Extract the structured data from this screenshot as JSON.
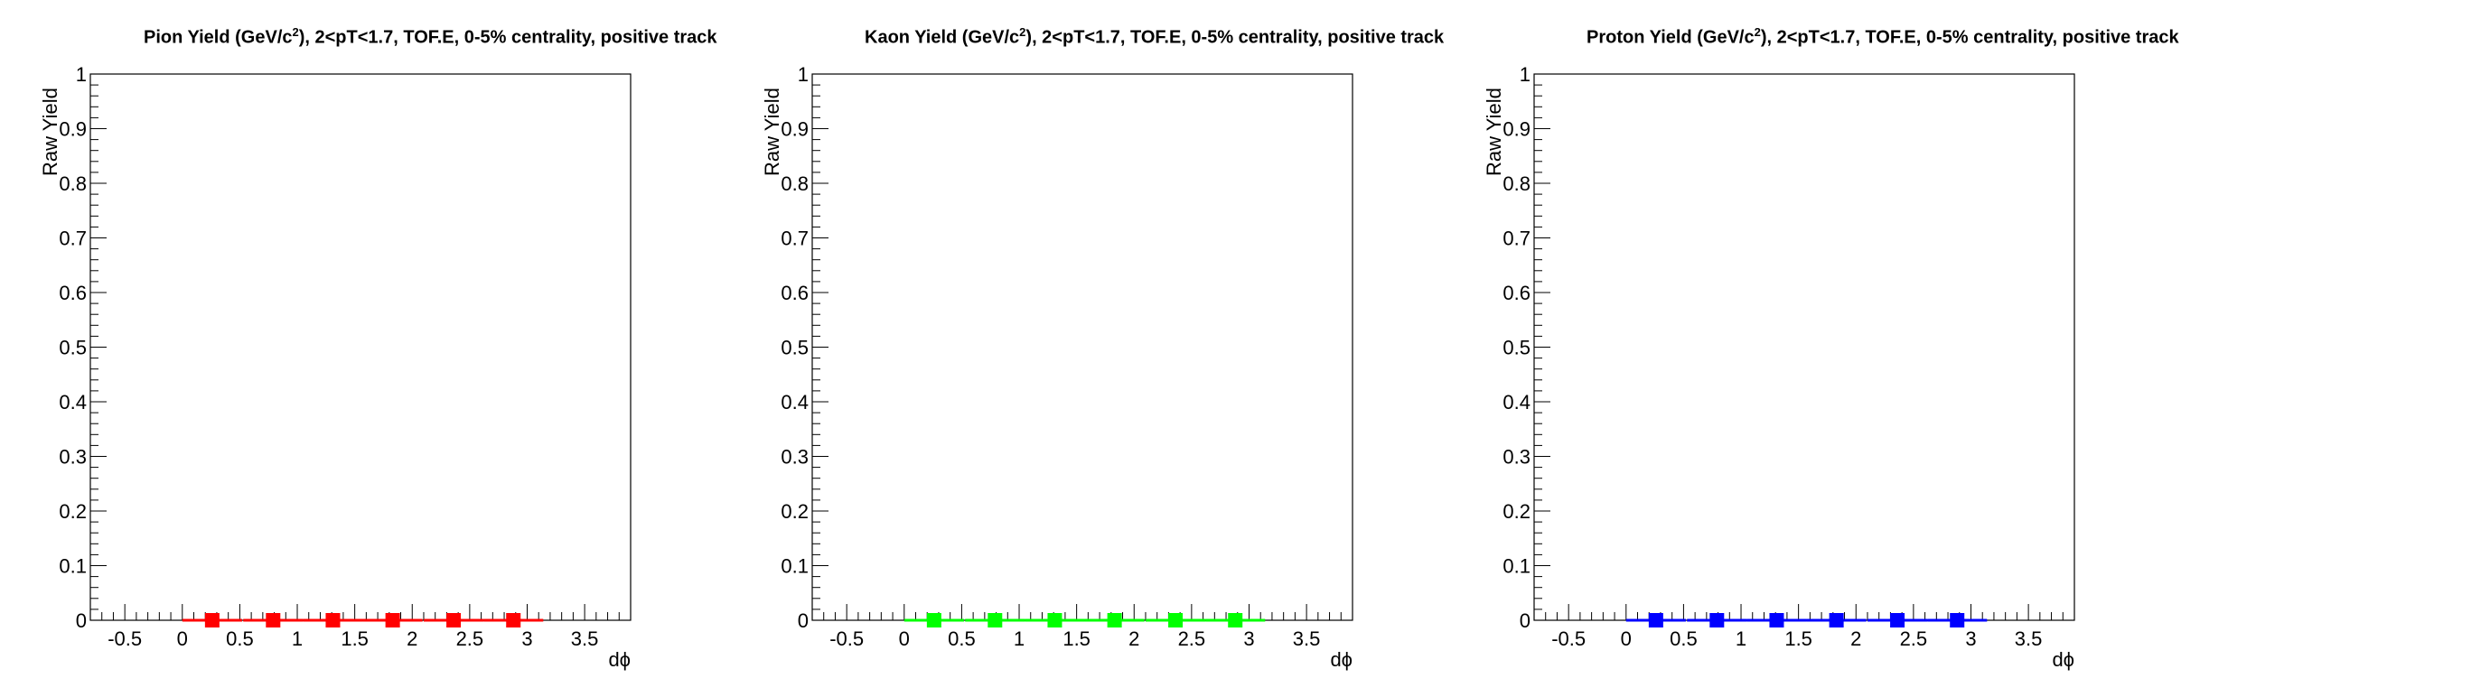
{
  "chart_data": [
    {
      "type": "scatter",
      "title_parts": [
        "Pion Yield (GeV/c",
        "2",
        "), 2<pT<1.7, TOF.E, 0-5% centrality, positive track"
      ],
      "xlabel": "dϕ",
      "ylabel": "Raw Yield",
      "xlim": [
        -0.8,
        3.9
      ],
      "ylim": [
        0,
        1
      ],
      "xticks": [
        "-0.5",
        "0",
        "0.5",
        "1",
        "1.5",
        "2",
        "2.5",
        "3",
        "3.5"
      ],
      "yticks": [
        "0",
        "0.1",
        "0.2",
        "0.3",
        "0.4",
        "0.5",
        "0.6",
        "0.7",
        "0.8",
        "0.9",
        "1"
      ],
      "color": "#ff0000",
      "series": [
        {
          "x": [
            0.26,
            0.79,
            1.31,
            1.83,
            2.36,
            2.88
          ],
          "y": [
            0,
            0,
            0,
            0,
            0,
            0
          ],
          "xerr": 0.26
        }
      ]
    },
    {
      "type": "scatter",
      "title_parts": [
        "Kaon Yield (GeV/c",
        "2",
        "), 2<pT<1.7, TOF.E, 0-5% centrality, positive track"
      ],
      "xlabel": "dϕ",
      "ylabel": "Raw Yield",
      "xlim": [
        -0.8,
        3.9
      ],
      "ylim": [
        0,
        1
      ],
      "xticks": [
        "-0.5",
        "0",
        "0.5",
        "1",
        "1.5",
        "2",
        "2.5",
        "3",
        "3.5"
      ],
      "yticks": [
        "0",
        "0.1",
        "0.2",
        "0.3",
        "0.4",
        "0.5",
        "0.6",
        "0.7",
        "0.8",
        "0.9",
        "1"
      ],
      "color": "#00ff00",
      "series": [
        {
          "x": [
            0.26,
            0.79,
            1.31,
            1.83,
            2.36,
            2.88
          ],
          "y": [
            0,
            0,
            0,
            0,
            0,
            0
          ],
          "xerr": 0.26
        }
      ]
    },
    {
      "type": "scatter",
      "title_parts": [
        "Proton Yield (GeV/c",
        "2",
        "), 2<pT<1.7, TOF.E, 0-5% centrality, positive track"
      ],
      "xlabel": "dϕ",
      "ylabel": "Raw Yield",
      "xlim": [
        -0.8,
        3.9
      ],
      "ylim": [
        0,
        1
      ],
      "xticks": [
        "-0.5",
        "0",
        "0.5",
        "1",
        "1.5",
        "2",
        "2.5",
        "3",
        "3.5"
      ],
      "yticks": [
        "0",
        "0.1",
        "0.2",
        "0.3",
        "0.4",
        "0.5",
        "0.6",
        "0.7",
        "0.8",
        "0.9",
        "1"
      ],
      "color": "#0000ff",
      "series": [
        {
          "x": [
            0.26,
            0.79,
            1.31,
            1.83,
            2.36,
            2.88
          ],
          "y": [
            0,
            0,
            0,
            0,
            0,
            0
          ],
          "xerr": 0.26
        }
      ]
    }
  ]
}
